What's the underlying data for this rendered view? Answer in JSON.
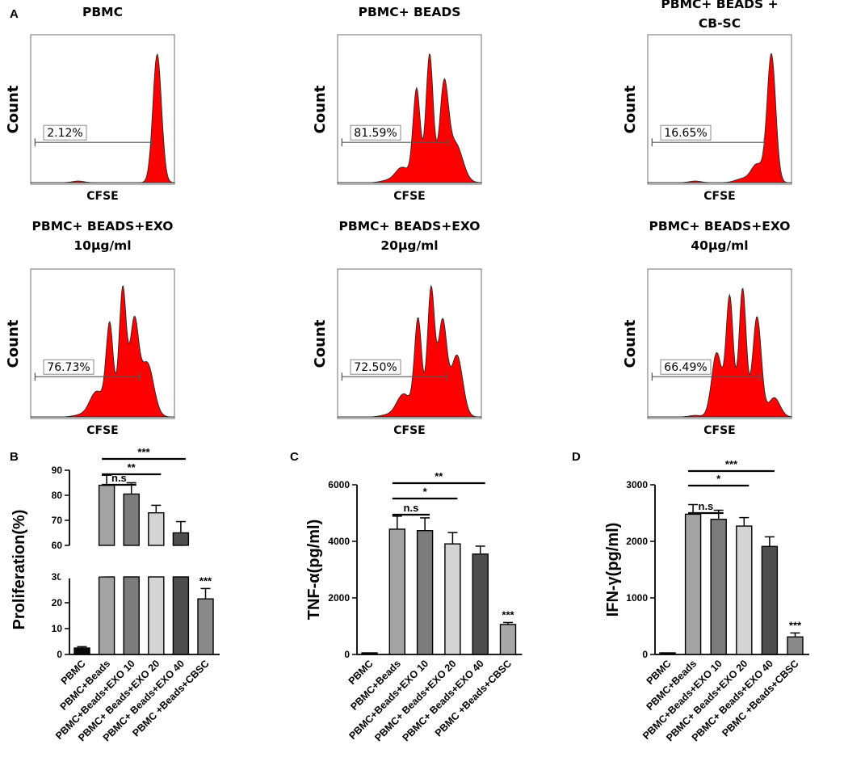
{
  "panel_labels": {
    "a": "A",
    "b": "B",
    "c": "C",
    "d": "D"
  },
  "histograms": [
    {
      "title_lines": [
        "PBMC"
      ],
      "gate_label": "2.12%",
      "y_axis_label": "Count",
      "x_axis_label": "CFSE"
    },
    {
      "title_lines": [
        "PBMC+ BEADS"
      ],
      "gate_label": "81.59%",
      "y_axis_label": "Count",
      "x_axis_label": "CFSE"
    },
    {
      "title_lines": [
        "PBMC+ BEADS +",
        "CB-SC"
      ],
      "gate_label": "16.65%",
      "y_axis_label": "Count",
      "x_axis_label": "CFSE"
    },
    {
      "title_lines": [
        "PBMC+ BEADS+EXO",
        "10μg/ml"
      ],
      "gate_label": "76.73%",
      "y_axis_label": "Count",
      "x_axis_label": "CFSE"
    },
    {
      "title_lines": [
        "PBMC+ BEADS+EXO",
        "20μg/ml"
      ],
      "gate_label": "72.50%",
      "y_axis_label": "Count",
      "x_axis_label": "CFSE"
    },
    {
      "title_lines": [
        "PBMC+ BEADS+EXO",
        "40μg/ml"
      ],
      "gate_label": "66.49%",
      "y_axis_label": "Count",
      "x_axis_label": "CFSE"
    }
  ],
  "chart_data": [
    {
      "type": "bar",
      "panel": "B",
      "ylabel": "Proliferation(%)",
      "categories": [
        "PBMC",
        "PBMC+Beads",
        "PBMC+Beads+EXO 10",
        "PBMC+ Beads+EXO 20",
        "PBMC+ Beads+EXO 40",
        "PBMC +Beads+CBSC"
      ],
      "values": [
        2.5,
        84,
        80.5,
        73,
        65,
        21.5
      ],
      "errors": [
        0.5,
        4,
        4.5,
        3,
        4.5,
        4
      ],
      "colors": [
        "#0a0a0a",
        "#a3a3a3",
        "#7c7c7c",
        "#d4d4d4",
        "#4e4e4e",
        "#8a8a8a"
      ],
      "axis_break": {
        "lower_range": [
          0,
          30
        ],
        "upper_range": [
          60,
          90
        ]
      },
      "lower_ticks": [
        0,
        10,
        20,
        30
      ],
      "upper_ticks": [
        60,
        70,
        80,
        90
      ],
      "significance": [
        {
          "label": "n.s",
          "from": 1,
          "to": 2
        },
        {
          "label": "**",
          "from": 1,
          "to": 3
        },
        {
          "label": "***",
          "from": 1,
          "to": 4
        }
      ],
      "bar_annotations": [
        {
          "index": 5,
          "label": "***"
        }
      ]
    },
    {
      "type": "bar",
      "panel": "C",
      "ylabel": "TNF-α(pg/ml)",
      "categories": [
        "PBMC",
        "PBMC+Beads",
        "PBMC+Beads+EXO 10",
        "PBMC+ Beads+EXO 20",
        "PBMC+ Beads+EXO 40",
        "PBMC +Beads+CBSC"
      ],
      "values": [
        30,
        4430,
        4380,
        3910,
        3550,
        1060
      ],
      "errors": [
        0,
        460,
        450,
        400,
        280,
        70
      ],
      "colors": [
        "#0a0a0a",
        "#a3a3a3",
        "#7c7c7c",
        "#d4d4d4",
        "#4e4e4e",
        "#a8a8a8"
      ],
      "ylim": [
        0,
        6000
      ],
      "ticks": [
        0,
        2000,
        4000,
        6000
      ],
      "significance": [
        {
          "label": "n.s",
          "from": 1,
          "to": 2
        },
        {
          "label": "*",
          "from": 1,
          "to": 3
        },
        {
          "label": "**",
          "from": 1,
          "to": 4
        }
      ],
      "bar_annotations": [
        {
          "index": 5,
          "label": "***"
        }
      ]
    },
    {
      "type": "bar",
      "panel": "D",
      "ylabel": "IFN-γ(pg/ml)",
      "categories": [
        "PBMC",
        "PBMC+Beads",
        "PBMC+Beads+EXO 10",
        "PBMC+ Beads+EXO 20",
        "PBMC+ Beads+EXO 40",
        "PBMC +Beads+CBSC"
      ],
      "values": [
        5,
        2480,
        2390,
        2270,
        1910,
        310
      ],
      "errors": [
        0,
        170,
        160,
        150,
        170,
        70
      ],
      "colors": [
        "#0a0a0a",
        "#a3a3a3",
        "#7c7c7c",
        "#d4d4d4",
        "#4e4e4e",
        "#8a8a8a"
      ],
      "ylim": [
        0,
        3000
      ],
      "ticks": [
        0,
        1000,
        2000,
        3000
      ],
      "significance": [
        {
          "label": "n.s",
          "from": 1,
          "to": 2
        },
        {
          "label": "*",
          "from": 1,
          "to": 3
        },
        {
          "label": "***",
          "from": 1,
          "to": 4
        }
      ],
      "bar_annotations": [
        {
          "index": 5,
          "label": "***"
        }
      ]
    }
  ]
}
